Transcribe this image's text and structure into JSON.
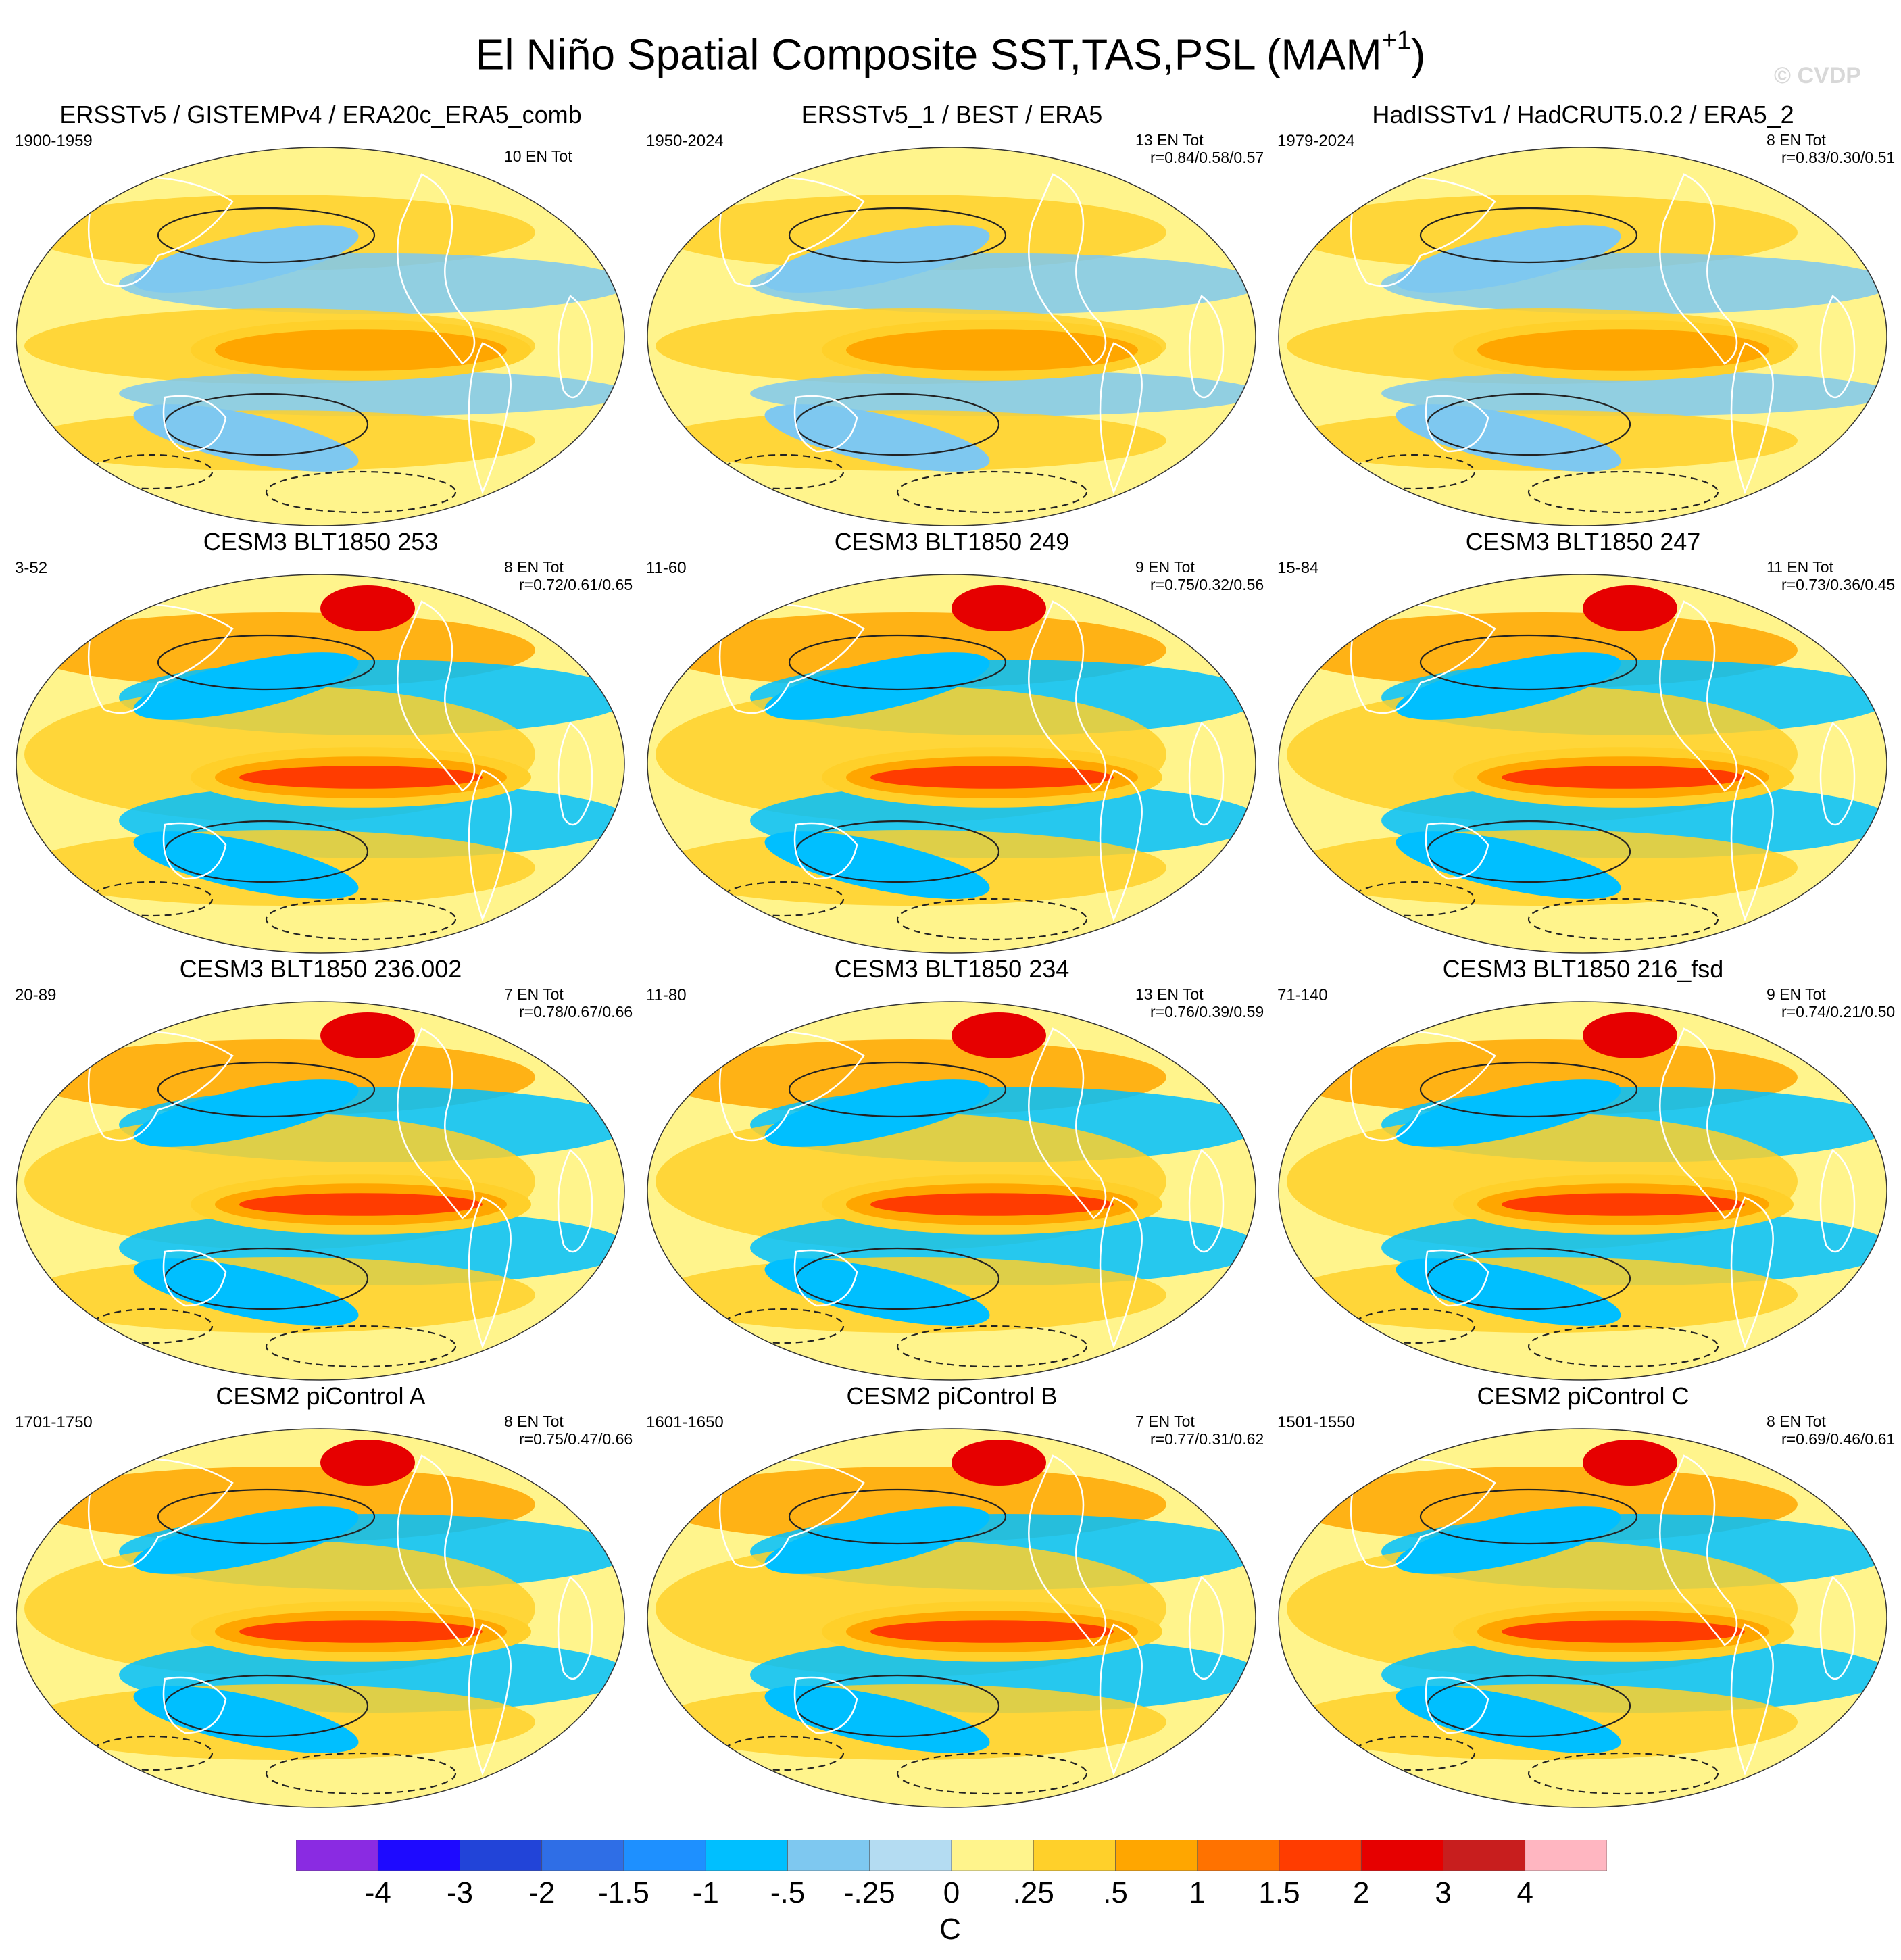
{
  "figure": {
    "title": "El Niño Spatial Composite SST,TAS,PSL (MAM",
    "title_sup": "+1",
    "title_close": ")",
    "watermark": "© CVDP"
  },
  "chart_data": {
    "type": "heatmap",
    "projection": "Robinson (Pacific-centered)",
    "fields": [
      "SST",
      "TAS",
      "PSL contours"
    ],
    "season": "MAM+1",
    "units": "C",
    "colorbar": {
      "levels": [
        "-4",
        "-3",
        "-2",
        "-1.5",
        "-1",
        "-.5",
        "-.25",
        "0",
        ".25",
        ".5",
        "1",
        "1.5",
        "2",
        "3",
        "4"
      ],
      "colors": [
        "#8a2be2",
        "#1e0aff",
        "#2244d8",
        "#2f6ee6",
        "#1e90ff",
        "#00bfff",
        "#7ec8f0",
        "#b4dcf2",
        "#fff48c",
        "#ffd02a",
        "#ffa600",
        "#ff7200",
        "#ff3c00",
        "#e60000",
        "#c81e1e",
        "#ffb6c1"
      ]
    },
    "panels": [
      {
        "title": "ERSSTv5 / GISTEMPv4 / ERA20c_ERA5_comb",
        "period": "1900-1959",
        "events": "10 EN Tot",
        "r": ""
      },
      {
        "title": "ERSSTv5_1 / BEST / ERA5",
        "period": "1950-2024",
        "events": "13 EN Tot",
        "r": "r=0.84/0.58/0.57"
      },
      {
        "title": "HadISSTv1 / HadCRUT5.0.2 / ERA5_2",
        "period": "1979-2024",
        "events": "8 EN Tot",
        "r": "r=0.83/0.30/0.51"
      },
      {
        "title": "CESM3 BLT1850 253",
        "period": "3-52",
        "events": "8 EN Tot",
        "r": "r=0.72/0.61/0.65"
      },
      {
        "title": "CESM3 BLT1850 249",
        "period": "11-60",
        "events": "9 EN Tot",
        "r": "r=0.75/0.32/0.56"
      },
      {
        "title": "CESM3 BLT1850 247",
        "period": "15-84",
        "events": "11 EN Tot",
        "r": "r=0.73/0.36/0.45"
      },
      {
        "title": "CESM3 BLT1850 236.002",
        "period": "20-89",
        "events": "7 EN Tot",
        "r": "r=0.78/0.67/0.66"
      },
      {
        "title": "CESM3 BLT1850 234",
        "period": "11-80",
        "events": "13 EN Tot",
        "r": "r=0.76/0.39/0.59"
      },
      {
        "title": "CESM3 BLT1850 216_fsd",
        "period": "71-140",
        "events": "9 EN Tot",
        "r": "r=0.74/0.21/0.50"
      },
      {
        "title": "CESM2 piControl A",
        "period": "1701-1750",
        "events": "8 EN Tot",
        "r": "r=0.75/0.47/0.66"
      },
      {
        "title": "CESM2 piControl B",
        "period": "1601-1650",
        "events": "7 EN Tot",
        "r": "r=0.77/0.31/0.62"
      },
      {
        "title": "CESM2 piControl C",
        "period": "1501-1550",
        "events": "8 EN Tot",
        "r": "r=0.69/0.46/0.61"
      }
    ]
  }
}
